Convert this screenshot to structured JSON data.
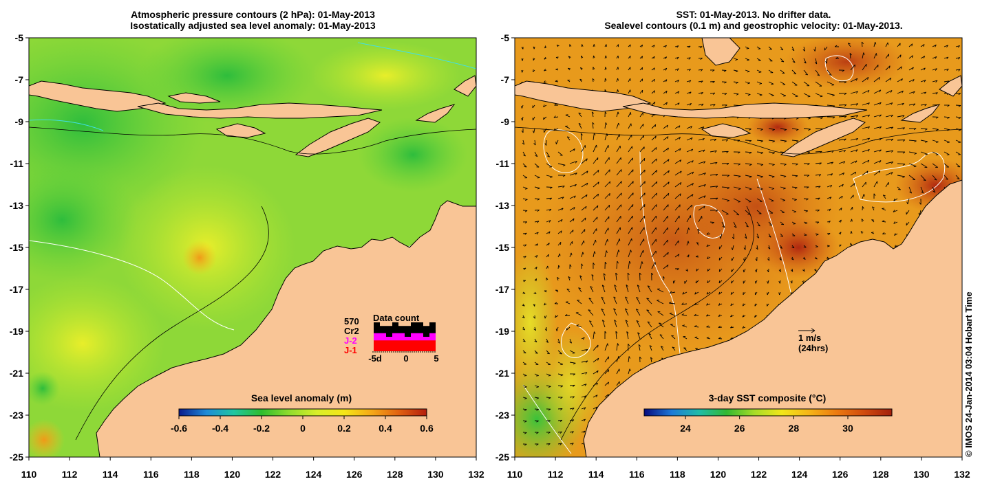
{
  "left_panel": {
    "title_line1": "Atmospheric pressure contours (2 hPa): 01-May-2013",
    "title_line2": "Isostatically adjusted sea level anomaly: 01-May-2013",
    "colorbar": {
      "title": "Sea level anomaly (m)",
      "ticks": [
        "-0.6",
        "-0.4",
        "-0.2",
        "0",
        "0.2",
        "0.4",
        "0.6"
      ]
    },
    "data_count": {
      "title": "Data count",
      "total": "570",
      "labels": [
        "Cr2",
        "J-2",
        "J-1"
      ],
      "label_colors": [
        "#000000",
        "#ff00ff",
        "#ff0000"
      ],
      "x_ticks": [
        "-5d",
        "0",
        "5"
      ],
      "bars": {
        "total": [
          8,
          7,
          7,
          8,
          7,
          7,
          8,
          8,
          7,
          8
        ],
        "j2_plus_j1": [
          5,
          5,
          4,
          5,
          5,
          4,
          5,
          5,
          4,
          5
        ],
        "j1": [
          3,
          3,
          3,
          3,
          3,
          3,
          3,
          3,
          3,
          3
        ],
        "max": 8
      }
    }
  },
  "right_panel": {
    "title_line1": "SST: 01-May-2013. No drifter data.",
    "title_line2": "Sealevel contours (0.1 m) and geostrophic velocity: 01-May-2013.",
    "colorbar": {
      "title": "3-day SST composite (°C)",
      "ticks": [
        "24",
        "26",
        "28",
        "30"
      ]
    },
    "velocity_legend": {
      "label": "1 m/s",
      "sublabel": "(24hrs)"
    }
  },
  "axes": {
    "x_ticks": [
      "110",
      "112",
      "114",
      "116",
      "118",
      "120",
      "122",
      "124",
      "126",
      "128",
      "130",
      "132"
    ],
    "y_ticks": [
      "-5",
      "-7",
      "-9",
      "-11",
      "-13",
      "-15",
      "-17",
      "-19",
      "-21",
      "-23",
      "-25"
    ]
  },
  "credit": "© IMOS 24-Jan-2014 03:04 Hobart Time",
  "colors": {
    "land": "#f9c596",
    "sla_scale": [
      "#0b1a8c",
      "#1f8bd8",
      "#22c6a0",
      "#2ebd2e",
      "#8fdc2e",
      "#d8ee2a",
      "#f5e618",
      "#f5a818",
      "#e06010",
      "#b41e0e"
    ],
    "sst_scale": [
      "#070a7e",
      "#1e7ad8",
      "#20bca8",
      "#32b832",
      "#a6dc28",
      "#f2e61a",
      "#f5b418",
      "#ec7a10",
      "#d04a0e",
      "#a3200c"
    ]
  }
}
